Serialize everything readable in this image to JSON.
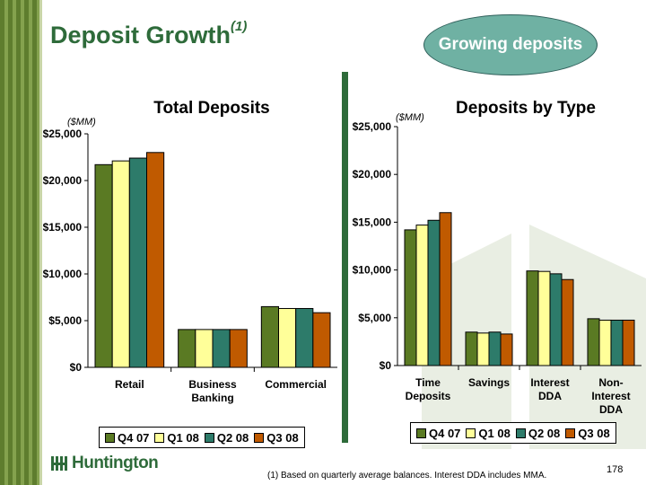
{
  "slide": {
    "title": "Deposit Growth",
    "title_superscript": "(1)",
    "callout": "Growing deposits",
    "footnote": "(1) Based on quarterly average balances.  Interest DDA includes MMA.",
    "page_number": "178",
    "logo_text": "Huntington"
  },
  "colors": {
    "brand_green": "#2e6b3a",
    "callout_fill": "#6fb1a3",
    "series": [
      "#5a7a23",
      "#ffff99",
      "#2d7b6a",
      "#c05a00"
    ]
  },
  "chart_data": [
    {
      "type": "bar",
      "title": "Total Deposits",
      "unit_label": "($MM)",
      "categories": [
        [
          "Retail"
        ],
        [
          "Business",
          "Banking"
        ],
        [
          "Commercial"
        ]
      ],
      "series": [
        {
          "name": "Q4 07",
          "values": [
            21700,
            4050,
            6500
          ]
        },
        {
          "name": "Q1 08",
          "values": [
            22100,
            4050,
            6300
          ]
        },
        {
          "name": "Q2 08",
          "values": [
            22400,
            4050,
            6300
          ]
        },
        {
          "name": "Q3 08",
          "values": [
            23000,
            4050,
            5850
          ]
        }
      ],
      "ylim": [
        0,
        25000
      ],
      "yticks": [
        0,
        5000,
        10000,
        15000,
        20000,
        25000
      ],
      "ytick_labels": [
        "$0",
        "$5,000",
        "$10,000",
        "$15,000",
        "$20,000",
        "$25,000"
      ],
      "legend": "bottom"
    },
    {
      "type": "bar",
      "title": "Deposits by Type",
      "unit_label": "($MM)",
      "categories": [
        [
          "Time",
          "Deposits"
        ],
        [
          "Savings"
        ],
        [
          "Interest",
          "DDA"
        ],
        [
          "Non-",
          "Interest",
          "DDA"
        ]
      ],
      "series": [
        {
          "name": "Q4 07",
          "values": [
            14200,
            3500,
            9900,
            4900
          ]
        },
        {
          "name": "Q1 08",
          "values": [
            14700,
            3400,
            9850,
            4750
          ]
        },
        {
          "name": "Q2 08",
          "values": [
            15200,
            3500,
            9600,
            4750
          ]
        },
        {
          "name": "Q3 08",
          "values": [
            16000,
            3300,
            9000,
            4750
          ]
        }
      ],
      "ylim": [
        0,
        25000
      ],
      "yticks": [
        0,
        5000,
        10000,
        15000,
        20000,
        25000
      ],
      "ytick_labels": [
        "$0",
        "$5,000",
        "$10,000",
        "$15,000",
        "$20,000",
        "$25,000"
      ],
      "legend": "bottom"
    }
  ]
}
